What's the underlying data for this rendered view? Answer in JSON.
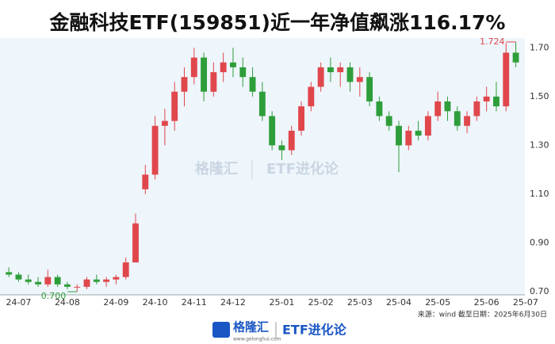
{
  "chart_data": {
    "type": "candlestick",
    "title": "金融科技ETF(159851)近一年净值飙涨116.17%",
    "categories": [
      null,
      "24-07",
      null,
      null,
      null,
      null,
      "24-08",
      null,
      null,
      null,
      null,
      "24-09",
      null,
      null,
      null,
      "24-10",
      null,
      null,
      null,
      "24-11",
      null,
      null,
      null,
      "24-12",
      null,
      null,
      null,
      null,
      "25-01",
      null,
      null,
      null,
      "25-02",
      null,
      null,
      null,
      "25-03",
      null,
      null,
      null,
      "25-04",
      null,
      null,
      null,
      "25-05",
      null,
      null,
      null,
      null,
      "25-06",
      null,
      null,
      null,
      "25-07"
    ],
    "open": [
      0.78,
      0.77,
      0.75,
      0.74,
      0.73,
      0.76,
      0.73,
      0.72,
      0.72,
      0.75,
      0.74,
      0.75,
      0.76,
      0.82,
      1.12,
      1.18,
      1.38,
      1.4,
      1.52,
      1.58,
      1.66,
      1.52,
      1.6,
      1.64,
      1.62,
      1.58,
      1.52,
      1.42,
      1.3,
      1.28,
      1.36,
      1.46,
      1.54,
      1.62,
      1.6,
      1.62,
      1.56,
      1.58,
      1.48,
      1.42,
      1.38,
      1.3,
      1.36,
      1.34,
      1.42,
      1.48,
      1.44,
      1.38,
      1.42,
      1.48,
      1.5,
      1.46,
      1.68,
      null
    ],
    "high": [
      0.8,
      0.78,
      0.77,
      0.76,
      0.79,
      0.77,
      0.74,
      0.73,
      0.76,
      0.77,
      0.76,
      0.77,
      0.84,
      1.02,
      1.22,
      1.42,
      1.45,
      1.56,
      1.62,
      1.7,
      1.68,
      1.64,
      1.68,
      1.7,
      1.66,
      1.62,
      1.56,
      1.44,
      1.32,
      1.38,
      1.48,
      1.56,
      1.64,
      1.66,
      1.64,
      1.64,
      1.62,
      1.6,
      1.5,
      1.44,
      1.4,
      1.38,
      1.4,
      1.44,
      1.52,
      1.5,
      1.46,
      1.44,
      1.5,
      1.54,
      1.56,
      1.72,
      1.724,
      null
    ],
    "low": [
      0.76,
      0.74,
      0.73,
      0.72,
      0.72,
      0.72,
      0.71,
      0.7,
      0.71,
      0.73,
      0.72,
      0.73,
      0.75,
      0.82,
      1.1,
      1.16,
      1.3,
      1.36,
      1.46,
      1.55,
      1.48,
      1.5,
      1.56,
      1.58,
      1.54,
      1.5,
      1.4,
      1.28,
      1.24,
      1.26,
      1.34,
      1.44,
      1.52,
      1.56,
      1.54,
      1.52,
      1.5,
      1.46,
      1.4,
      1.36,
      1.19,
      1.28,
      1.32,
      1.32,
      1.4,
      1.4,
      1.36,
      1.35,
      1.4,
      1.44,
      1.44,
      1.44,
      1.62,
      null
    ],
    "close": [
      0.77,
      0.75,
      0.74,
      0.73,
      0.76,
      0.73,
      0.72,
      0.72,
      0.75,
      0.74,
      0.75,
      0.76,
      0.82,
      0.98,
      1.18,
      1.38,
      1.4,
      1.52,
      1.58,
      1.66,
      1.52,
      1.6,
      1.64,
      1.62,
      1.58,
      1.52,
      1.42,
      1.3,
      1.28,
      1.36,
      1.46,
      1.54,
      1.62,
      1.6,
      1.62,
      1.56,
      1.58,
      1.48,
      1.42,
      1.38,
      1.3,
      1.36,
      1.34,
      1.42,
      1.48,
      1.44,
      1.38,
      1.42,
      1.48,
      1.5,
      1.46,
      1.68,
      1.64,
      null
    ],
    "up_color": "#e0474c",
    "down_color": "#2e9e3a",
    "annotations": [
      {
        "label": "0.700",
        "value": 0.7,
        "color": "#2e9e3a"
      },
      {
        "label": "1.724",
        "value": 1.724,
        "color": "#e0474c"
      }
    ],
    "ylim": [
      0.687,
      1.74
    ],
    "yticks": [
      {
        "value": 0.7,
        "label": "0.70"
      },
      {
        "value": 0.9,
        "label": "0.90"
      },
      {
        "value": 1.1,
        "label": "1.10"
      },
      {
        "value": 1.3,
        "label": "1.30"
      },
      {
        "value": 1.5,
        "label": "1.50"
      },
      {
        "value": 1.7,
        "label": "1.70"
      }
    ],
    "watermark": {
      "brand": "格隆汇",
      "product": "ETF进化论"
    },
    "source": "来源：wind 截至日期：2025年6月30日",
    "footer": {
      "brand": "格隆汇",
      "site": "www.gelonghui.com",
      "product": "ETF进化论"
    }
  }
}
